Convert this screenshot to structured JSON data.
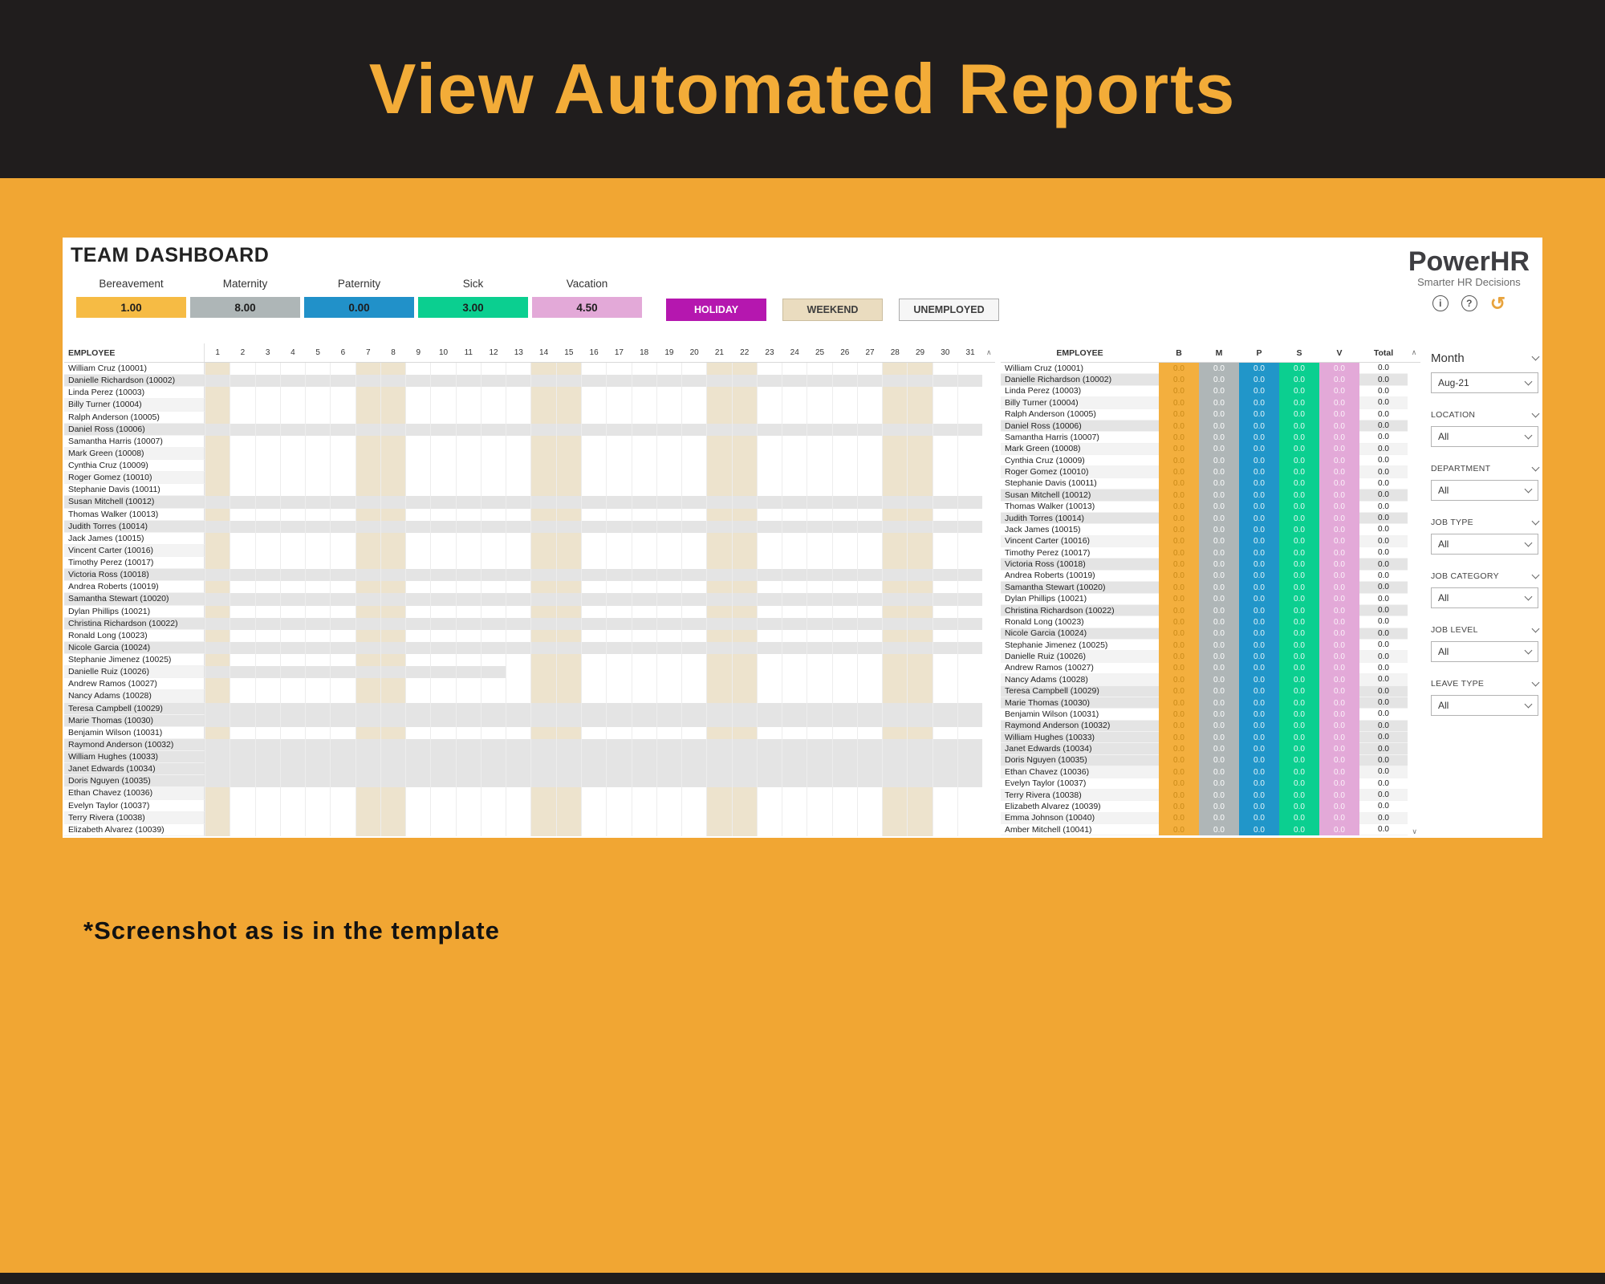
{
  "theme": {
    "page-bg": "#F1A633",
    "banner-bg": "#201D1D",
    "banner-title": "#F3AC38",
    "weekend-cell": "#EDE3CD",
    "unemployed-cell": "#E4E4E4",
    "stripe": "#F3F3F3",
    "accent-undo": "#E8A33D"
  },
  "page": {
    "title": "View Automated Reports",
    "footnote": "*Screenshot as is in the template"
  },
  "dashboard": {
    "title": "TEAM DASHBOARD",
    "logo": {
      "name": "PowerHR",
      "tagline": "Smarter HR Decisions"
    },
    "icons": {
      "info": "i",
      "help": "?",
      "reset": "↺",
      "scroll_up": "∧",
      "scroll_down": "∨"
    },
    "summary_cards": [
      {
        "label": "Bereavement",
        "value": "1.00",
        "color": "#F6BB44"
      },
      {
        "label": "Maternity",
        "value": "8.00",
        "color": "#AEB6B7"
      },
      {
        "label": "Paternity",
        "value": "0.00",
        "color": "#2191C9"
      },
      {
        "label": "Sick",
        "value": "3.00",
        "color": "#0BCF90"
      },
      {
        "label": "Vacation",
        "value": "4.50",
        "color": "#E3A9D8"
      }
    ],
    "legend": [
      {
        "label": "HOLIDAY",
        "bg": "#B517AF",
        "text": "#FFFFFF",
        "border": "#B517AF"
      },
      {
        "label": "WEEKEND",
        "bg": "#EADCBF",
        "text": "#3D3D3D",
        "border": "#CBBD9E"
      },
      {
        "label": "UNEMPLOYED",
        "bg": "#F6F6F6",
        "text": "#3D3D3D",
        "border": "#ABABAB"
      }
    ],
    "calendar": {
      "employee_header": "EMPLOYEE",
      "day_count": 31,
      "weekend_days": [
        1,
        7,
        8,
        14,
        15,
        21,
        22,
        28,
        29
      ],
      "visible_rows": 39
    },
    "summary_table": {
      "employee_header": "EMPLOYEE",
      "total_header": "Total",
      "columns": [
        {
          "key": "B",
          "color": "#F3AF3E",
          "text": "#C98A18"
        },
        {
          "key": "M",
          "color": "#AFB6B7",
          "text": "#FFFFFF"
        },
        {
          "key": "P",
          "color": "#2196C9",
          "text": "#E8F5FB"
        },
        {
          "key": "S",
          "color": "#0BCF90",
          "text": "#E7FBF3"
        },
        {
          "key": "V",
          "color": "#E3A9D8",
          "text": "#FCF3FA"
        }
      ]
    },
    "employees": [
      {
        "name": "William Cruz (10001)",
        "unemployed": false,
        "values": [
          "0.0",
          "0.0",
          "0.0",
          "0.0",
          "0.0",
          "0.0"
        ]
      },
      {
        "name": "Danielle Richardson (10002)",
        "unemployed": true,
        "values": [
          "0.0",
          "0.0",
          "0.0",
          "0.0",
          "0.0",
          "0.0"
        ]
      },
      {
        "name": "Linda Perez (10003)",
        "unemployed": false,
        "values": [
          "0.0",
          "0.0",
          "0.0",
          "0.0",
          "0.0",
          "0.0"
        ]
      },
      {
        "name": "Billy Turner (10004)",
        "unemployed": false,
        "values": [
          "0.0",
          "0.0",
          "0.0",
          "0.0",
          "0.0",
          "0.0"
        ]
      },
      {
        "name": "Ralph Anderson (10005)",
        "unemployed": false,
        "values": [
          "0.0",
          "0.0",
          "0.0",
          "0.0",
          "0.0",
          "0.0"
        ]
      },
      {
        "name": "Daniel Ross (10006)",
        "unemployed": true,
        "values": [
          "0.0",
          "0.0",
          "0.0",
          "0.0",
          "0.0",
          "0.0"
        ]
      },
      {
        "name": "Samantha Harris (10007)",
        "unemployed": false,
        "values": [
          "0.0",
          "0.0",
          "0.0",
          "0.0",
          "0.0",
          "0.0"
        ]
      },
      {
        "name": "Mark Green (10008)",
        "unemployed": false,
        "values": [
          "0.0",
          "0.0",
          "0.0",
          "0.0",
          "0.0",
          "0.0"
        ]
      },
      {
        "name": "Cynthia Cruz (10009)",
        "unemployed": false,
        "values": [
          "0.0",
          "0.0",
          "0.0",
          "0.0",
          "0.0",
          "0.0"
        ]
      },
      {
        "name": "Roger Gomez (10010)",
        "unemployed": false,
        "values": [
          "0.0",
          "0.0",
          "0.0",
          "0.0",
          "0.0",
          "0.0"
        ]
      },
      {
        "name": "Stephanie Davis (10011)",
        "unemployed": false,
        "values": [
          "0.0",
          "0.0",
          "0.0",
          "0.0",
          "0.0",
          "0.0"
        ]
      },
      {
        "name": "Susan Mitchell (10012)",
        "unemployed": true,
        "values": [
          "0.0",
          "0.0",
          "0.0",
          "0.0",
          "0.0",
          "0.0"
        ]
      },
      {
        "name": "Thomas Walker (10013)",
        "unemployed": false,
        "values": [
          "0.0",
          "0.0",
          "0.0",
          "0.0",
          "0.0",
          "0.0"
        ]
      },
      {
        "name": "Judith Torres (10014)",
        "unemployed": true,
        "values": [
          "0.0",
          "0.0",
          "0.0",
          "0.0",
          "0.0",
          "0.0"
        ]
      },
      {
        "name": "Jack James (10015)",
        "unemployed": false,
        "values": [
          "0.0",
          "0.0",
          "0.0",
          "0.0",
          "0.0",
          "0.0"
        ]
      },
      {
        "name": "Vincent Carter (10016)",
        "unemployed": false,
        "values": [
          "0.0",
          "0.0",
          "0.0",
          "0.0",
          "0.0",
          "0.0"
        ]
      },
      {
        "name": "Timothy Perez (10017)",
        "unemployed": false,
        "values": [
          "0.0",
          "0.0",
          "0.0",
          "0.0",
          "0.0",
          "0.0"
        ]
      },
      {
        "name": "Victoria Ross (10018)",
        "unemployed": true,
        "values": [
          "0.0",
          "0.0",
          "0.0",
          "0.0",
          "0.0",
          "0.0"
        ]
      },
      {
        "name": "Andrea Roberts (10019)",
        "unemployed": false,
        "values": [
          "0.0",
          "0.0",
          "0.0",
          "0.0",
          "0.0",
          "0.0"
        ]
      },
      {
        "name": "Samantha Stewart (10020)",
        "unemployed": true,
        "values": [
          "0.0",
          "0.0",
          "0.0",
          "0.0",
          "0.0",
          "0.0"
        ]
      },
      {
        "name": "Dylan Phillips (10021)",
        "unemployed": false,
        "values": [
          "0.0",
          "0.0",
          "0.0",
          "0.0",
          "0.0",
          "0.0"
        ]
      },
      {
        "name": "Christina Richardson (10022)",
        "unemployed": true,
        "values": [
          "0.0",
          "0.0",
          "0.0",
          "0.0",
          "0.0",
          "0.0"
        ]
      },
      {
        "name": "Ronald Long (10023)",
        "unemployed": false,
        "values": [
          "0.0",
          "0.0",
          "0.0",
          "0.0",
          "0.0",
          "0.0"
        ]
      },
      {
        "name": "Nicole Garcia (10024)",
        "unemployed": true,
        "values": [
          "0.0",
          "0.0",
          "0.0",
          "0.0",
          "0.0",
          "0.0"
        ]
      },
      {
        "name": "Stephanie Jimenez (10025)",
        "unemployed": false,
        "values": [
          "0.0",
          "0.0",
          "0.0",
          "0.0",
          "0.0",
          "0.0"
        ]
      },
      {
        "name": "Danielle Ruiz (10026)",
        "unemployed": false,
        "partial_unemployed_days": [
          1,
          12
        ],
        "values": [
          "0.0",
          "0.0",
          "0.0",
          "0.0",
          "0.0",
          "0.0"
        ]
      },
      {
        "name": "Andrew Ramos (10027)",
        "unemployed": false,
        "values": [
          "0.0",
          "0.0",
          "0.0",
          "0.0",
          "0.0",
          "0.0"
        ]
      },
      {
        "name": "Nancy Adams (10028)",
        "unemployed": false,
        "values": [
          "0.0",
          "0.0",
          "0.0",
          "0.0",
          "0.0",
          "0.0"
        ]
      },
      {
        "name": "Teresa Campbell (10029)",
        "unemployed": true,
        "values": [
          "0.0",
          "0.0",
          "0.0",
          "0.0",
          "0.0",
          "0.0"
        ]
      },
      {
        "name": "Marie Thomas (10030)",
        "unemployed": true,
        "values": [
          "0.0",
          "0.0",
          "0.0",
          "0.0",
          "0.0",
          "0.0"
        ]
      },
      {
        "name": "Benjamin Wilson (10031)",
        "unemployed": false,
        "values": [
          "0.0",
          "0.0",
          "0.0",
          "0.0",
          "0.0",
          "0.0"
        ]
      },
      {
        "name": "Raymond Anderson (10032)",
        "unemployed": true,
        "values": [
          "0.0",
          "0.0",
          "0.0",
          "0.0",
          "0.0",
          "0.0"
        ]
      },
      {
        "name": "William Hughes (10033)",
        "unemployed": true,
        "values": [
          "0.0",
          "0.0",
          "0.0",
          "0.0",
          "0.0",
          "0.0"
        ]
      },
      {
        "name": "Janet Edwards (10034)",
        "unemployed": true,
        "values": [
          "0.0",
          "0.0",
          "0.0",
          "0.0",
          "0.0",
          "0.0"
        ]
      },
      {
        "name": "Doris Nguyen (10035)",
        "unemployed": true,
        "values": [
          "0.0",
          "0.0",
          "0.0",
          "0.0",
          "0.0",
          "0.0"
        ]
      },
      {
        "name": "Ethan Chavez (10036)",
        "unemployed": false,
        "values": [
          "0.0",
          "0.0",
          "0.0",
          "0.0",
          "0.0",
          "0.0"
        ]
      },
      {
        "name": "Evelyn Taylor (10037)",
        "unemployed": false,
        "values": [
          "0.0",
          "0.0",
          "0.0",
          "0.0",
          "0.0",
          "0.0"
        ]
      },
      {
        "name": "Terry Rivera (10038)",
        "unemployed": false,
        "values": [
          "0.0",
          "0.0",
          "0.0",
          "0.0",
          "0.0",
          "0.0"
        ]
      },
      {
        "name": "Elizabeth Alvarez (10039)",
        "unemployed": false,
        "values": [
          "0.0",
          "0.0",
          "0.0",
          "0.0",
          "0.0",
          "0.0"
        ]
      },
      {
        "name": "Emma Johnson (10040)",
        "unemployed": false,
        "values": [
          "0.0",
          "0.0",
          "0.0",
          "0.0",
          "0.0",
          "0.0"
        ]
      },
      {
        "name": "Amber Mitchell (10041)",
        "unemployed": false,
        "values": [
          "0.0",
          "0.0",
          "0.0",
          "0.0",
          "0.0",
          "0.0"
        ]
      }
    ],
    "filters": {
      "month_label": "Month",
      "month_value": "Aug-21",
      "items": [
        {
          "label": "LOCATION",
          "value": "All"
        },
        {
          "label": "DEPARTMENT",
          "value": "All"
        },
        {
          "label": "JOB TYPE",
          "value": "All"
        },
        {
          "label": "JOB CATEGORY",
          "value": "All"
        },
        {
          "label": "JOB LEVEL",
          "value": "All"
        },
        {
          "label": "LEAVE TYPE",
          "value": "All"
        }
      ]
    }
  }
}
